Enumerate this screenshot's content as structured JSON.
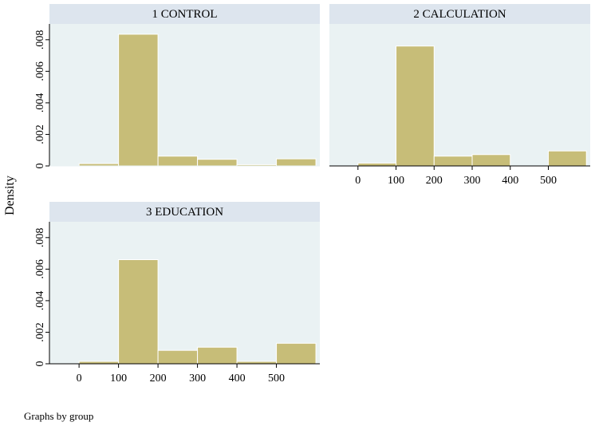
{
  "figure": {
    "ylabel": "Density",
    "note": "Graphs by group"
  },
  "style": {
    "bar_fill": "#c7bd78",
    "bar_stroke": "#ffffff",
    "header_fill": "#dde5ee",
    "plot_bg": "#eaf2f3",
    "axis_color": "#000000"
  },
  "chart_data": [
    {
      "type": "bar",
      "title": "1 CONTROL",
      "bin_edges": [
        0,
        100,
        200,
        300,
        400,
        500,
        600
      ],
      "values": [
        0.00015,
        0.00835,
        0.00062,
        0.00042,
        8e-05,
        0.00045
      ],
      "xlabel": "",
      "ylabel": "Density",
      "xlim": [
        -75,
        610
      ],
      "ylim": [
        0,
        0.009
      ],
      "xticks": [
        "0",
        "100",
        "200",
        "300",
        "400",
        "500"
      ],
      "yticks": [
        "0",
        ".002",
        ".004",
        ".006",
        ".008"
      ],
      "show_x_axis": false
    },
    {
      "type": "bar",
      "title": "2 CALCULATION",
      "bin_edges": [
        0,
        100,
        200,
        300,
        400,
        500,
        600
      ],
      "values": [
        0.00018,
        0.0076,
        0.00062,
        0.00072,
        0.0,
        0.00095
      ],
      "xlabel": "",
      "ylabel": "",
      "xlim": [
        -75,
        610
      ],
      "ylim": [
        0,
        0.009
      ],
      "xticks": [
        "0",
        "100",
        "200",
        "300",
        "400",
        "500"
      ],
      "yticks": [],
      "show_x_axis": true
    },
    {
      "type": "bar",
      "title": "3 EDUCATION",
      "bin_edges": [
        0,
        100,
        200,
        300,
        400,
        500,
        600
      ],
      "values": [
        0.00015,
        0.0066,
        0.00085,
        0.00105,
        0.00015,
        0.0013
      ],
      "xlabel": "",
      "ylabel": "Density",
      "xlim": [
        -75,
        610
      ],
      "ylim": [
        0,
        0.009
      ],
      "xticks": [
        "0",
        "100",
        "200",
        "300",
        "400",
        "500"
      ],
      "yticks": [
        "0",
        ".002",
        ".004",
        ".006",
        ".008"
      ],
      "show_x_axis": true
    }
  ]
}
